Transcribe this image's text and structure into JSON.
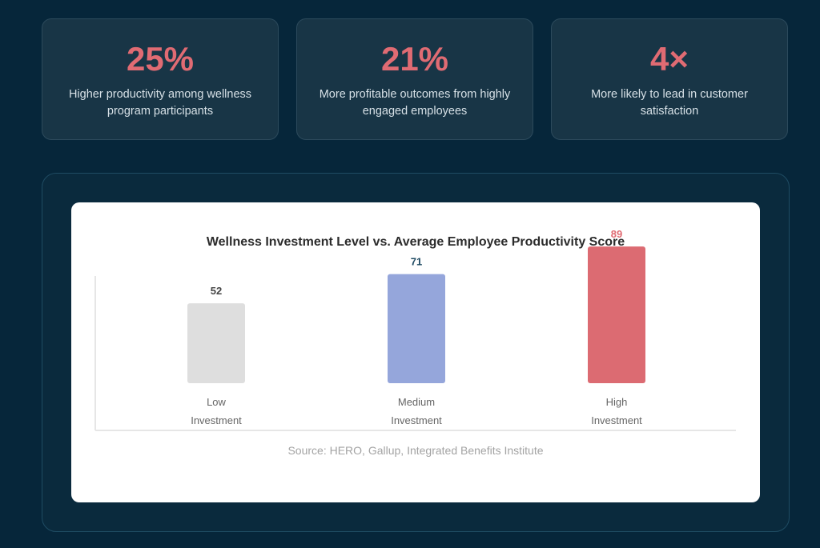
{
  "stats": [
    {
      "value": "25%",
      "text": "Higher productivity among wellness program participants"
    },
    {
      "value": "21%",
      "text": "More profitable outcomes from highly engaged employees"
    },
    {
      "value": "4×",
      "text": "More likely to lead in customer satisfaction"
    }
  ],
  "colors": {
    "accent": "#e06b73",
    "background": "#06263a",
    "card": "#183546"
  },
  "chart_data": {
    "type": "bar",
    "title": "Wellness Investment Level vs. Average Employee Productivity Score",
    "categories": [
      [
        "Low",
        "Investment"
      ],
      [
        "Medium",
        "Investment"
      ],
      [
        "High",
        "Investment"
      ]
    ],
    "values": [
      52,
      71,
      89
    ],
    "bar_colors": [
      "#dedede",
      "#95a6db",
      "#dc6b72"
    ],
    "label_colors": [
      "#444444",
      "#1f4b63",
      "#e06b73"
    ],
    "ylim": [
      0,
      100
    ],
    "grid": false,
    "legend": "none",
    "source": "Source: HERO, Gallup, Integrated Benefits Institute"
  }
}
